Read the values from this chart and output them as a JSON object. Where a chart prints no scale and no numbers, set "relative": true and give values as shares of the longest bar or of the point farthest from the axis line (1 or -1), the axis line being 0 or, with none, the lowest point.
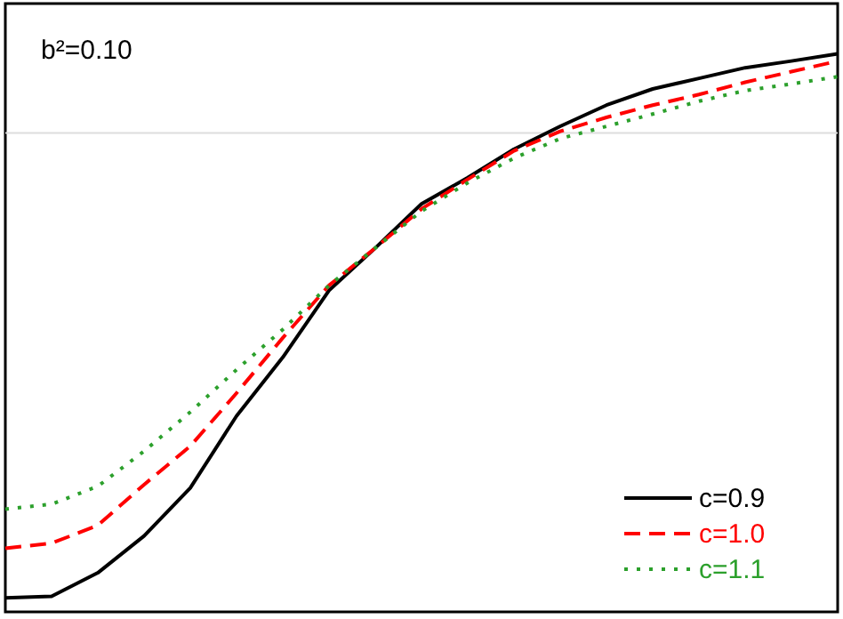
{
  "chart_data": {
    "type": "line",
    "relative": true,
    "legend": "bottom right",
    "categories": [
      null,
      null,
      null,
      null,
      null,
      null,
      null,
      null,
      null,
      null,
      null,
      null,
      null,
      null,
      null,
      null,
      null,
      null,
      null
    ],
    "series": [
      {
        "name": "c=0.9",
        "color": "#000000",
        "line_style": "solid",
        "values": [
          0.025,
          0.028,
          0.07,
          0.136,
          0.222,
          0.351,
          0.456,
          0.576,
          0.652,
          0.731,
          0.778,
          0.829,
          0.87,
          0.908,
          0.937,
          0.956,
          0.975,
          0.987,
          1.0
        ]
      },
      {
        "name": "c=1.0",
        "color": "#ff0000",
        "line_style": "dashed",
        "values": [
          0.114,
          0.123,
          0.155,
          0.228,
          0.297,
          0.392,
          0.491,
          0.585,
          0.652,
          0.722,
          0.775,
          0.826,
          0.861,
          0.886,
          0.908,
          0.927,
          0.949,
          0.968,
          0.987
        ]
      },
      {
        "name": "c=1.1",
        "color": "#2ca02c",
        "line_style": "dotted",
        "values": [
          0.184,
          0.193,
          0.225,
          0.288,
          0.358,
          0.434,
          0.506,
          0.585,
          0.652,
          0.718,
          0.769,
          0.813,
          0.848,
          0.87,
          0.892,
          0.915,
          0.934,
          0.946,
          0.959
        ]
      }
    ],
    "ref_lines": [
      {
        "axis": "y",
        "value": 0.858,
        "color": "#dddddd",
        "line_style": "solid"
      }
    ],
    "annotations": [
      "b²=0.10"
    ]
  }
}
